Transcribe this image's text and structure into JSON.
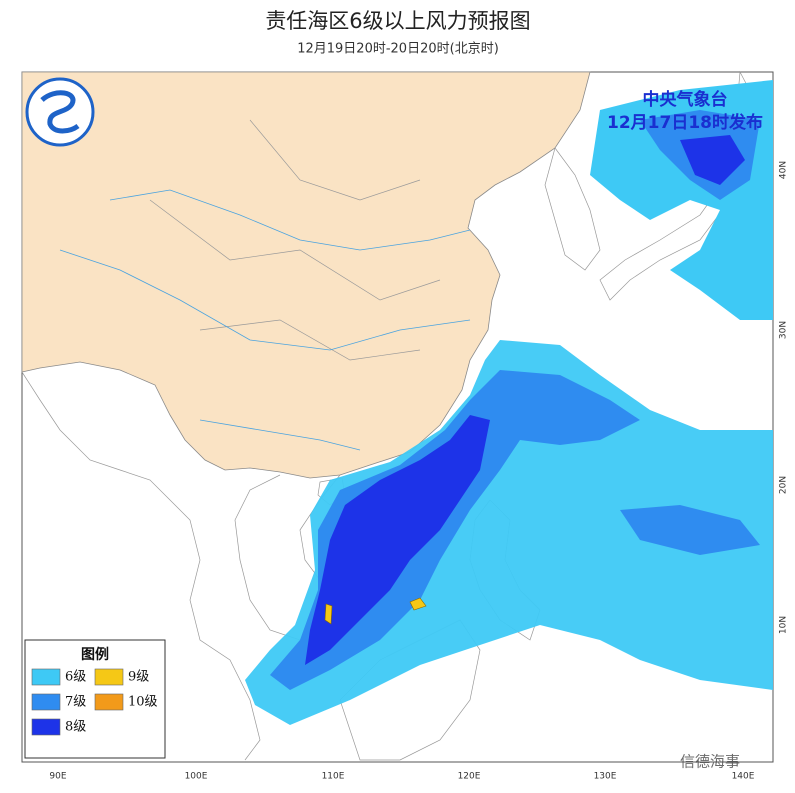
{
  "header": {
    "title": "责任海区6级以上风力预报图",
    "subtitle": "12月19日20时-20日20时(北京时)"
  },
  "issuer": {
    "name": "中央气象台",
    "time": "12月17日18时发布"
  },
  "legend": {
    "title": "图例",
    "items": [
      {
        "label": "6级",
        "color": "#3ec9f5"
      },
      {
        "label": "7级",
        "color": "#2f8cf0"
      },
      {
        "label": "8级",
        "color": "#1d33e8"
      },
      {
        "label": "9级",
        "color": "#f5c816"
      },
      {
        "label": "10级",
        "color": "#f29a1a"
      }
    ]
  },
  "map": {
    "lon_labels": [
      "90E",
      "100E",
      "110E",
      "120E",
      "130E",
      "140E"
    ],
    "lat_labels": [
      "40N",
      "30N",
      "20N",
      "10N"
    ]
  },
  "watermark": "信德海事"
}
